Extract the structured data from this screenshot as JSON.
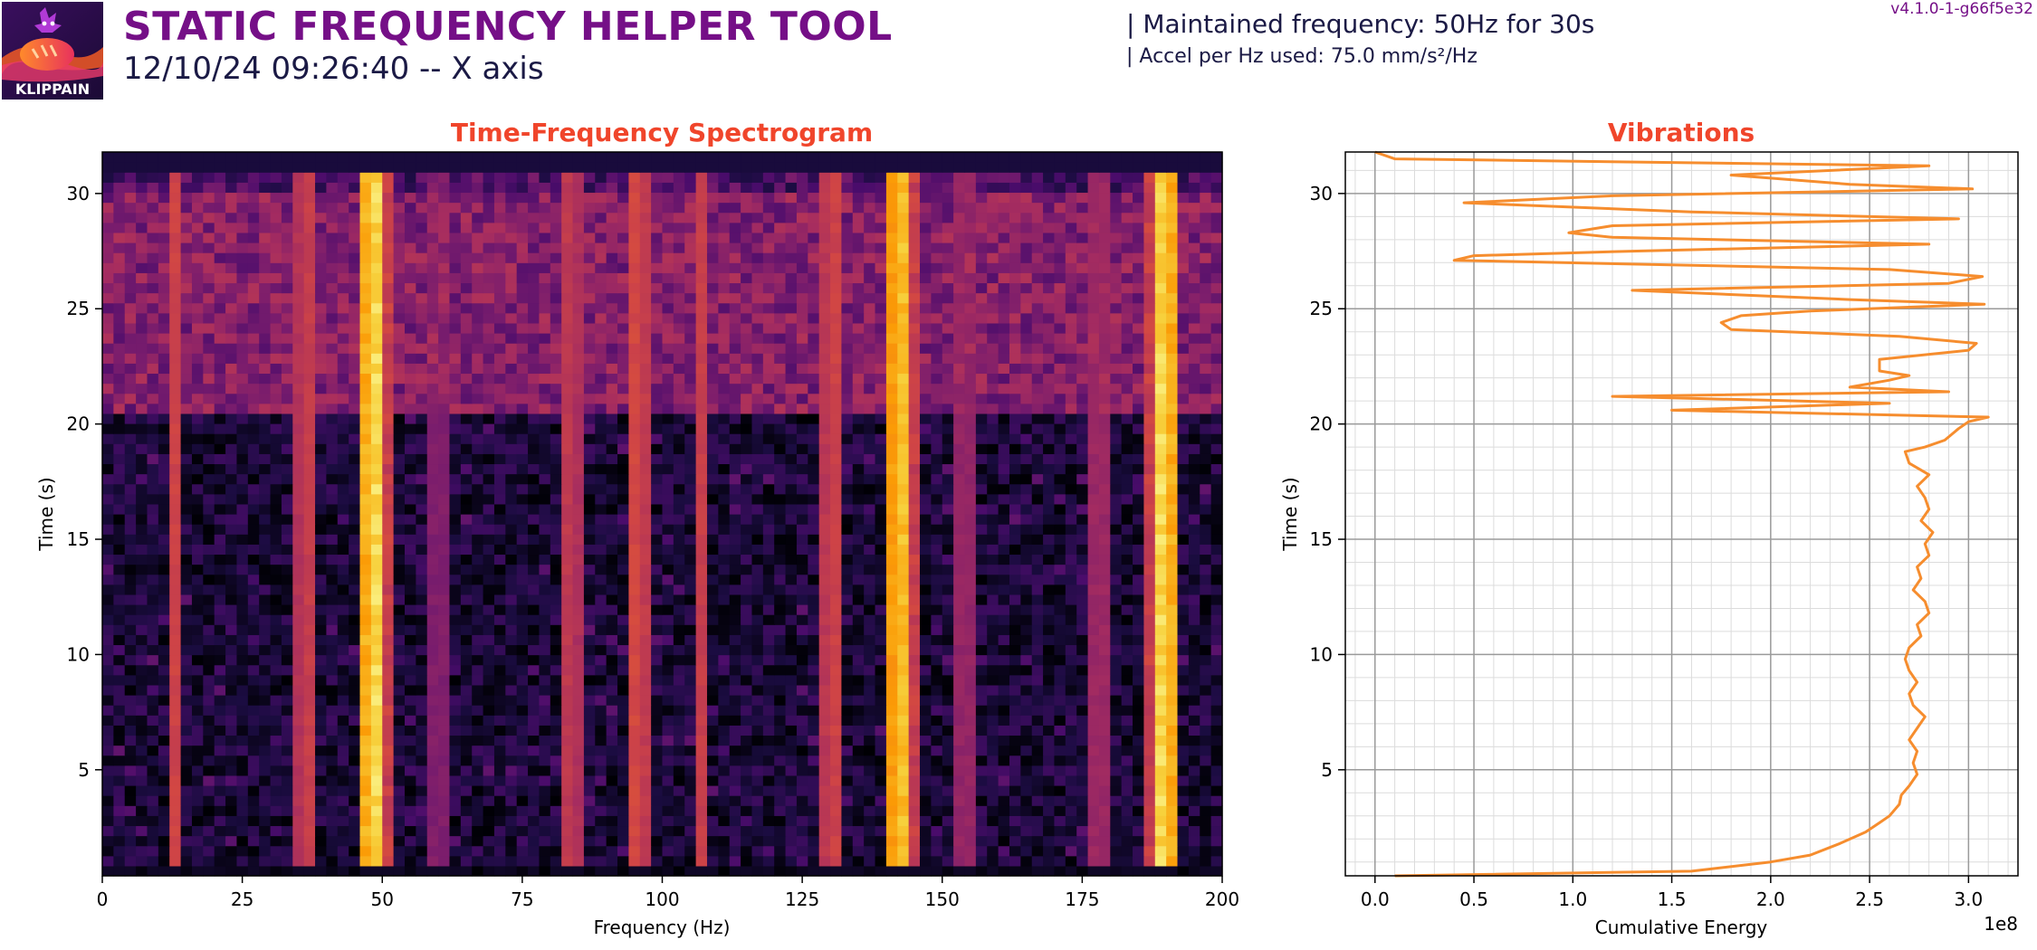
{
  "header": {
    "logo_text": "KLIPPAIN",
    "title": "STATIC FREQUENCY HELPER TOOL",
    "subtitle": "12/10/24 09:26:40 -- X axis",
    "info_line1": "| Maintained frequency: 50Hz for 30s",
    "info_line2": "| Accel per Hz used: 75.0 mm/s²/Hz",
    "version": "v4.1.0-1-g66f5e32"
  },
  "colors": {
    "title": "#750f87",
    "chart_title": "#f0452b",
    "line": "#f68d2e",
    "text": "#1b1a45"
  },
  "chart_data": [
    {
      "type": "heatmap",
      "title": "Time-Frequency Spectrogram",
      "xlabel": "Frequency (Hz)",
      "ylabel": "Time (s)",
      "xlim": [
        0,
        200
      ],
      "ylim": [
        0.4,
        31.8
      ],
      "xticks": [
        0,
        25,
        50,
        75,
        100,
        125,
        150,
        175,
        200
      ],
      "yticks": [
        5,
        10,
        15,
        20,
        25,
        30
      ],
      "colormap": "inferno",
      "bright_bands_hz": [
        {
          "freq": 13,
          "intensity": 0.62
        },
        {
          "freq": 36.5,
          "intensity": 0.62
        },
        {
          "freq": 48.5,
          "intensity": 0.98
        },
        {
          "freq": 60,
          "intensity": 0.45
        },
        {
          "freq": 83.5,
          "intensity": 0.6
        },
        {
          "freq": 95.5,
          "intensity": 0.66
        },
        {
          "freq": 107,
          "intensity": 0.6
        },
        {
          "freq": 130.5,
          "intensity": 0.64
        },
        {
          "freq": 142.5,
          "intensity": 0.95
        },
        {
          "freq": 154,
          "intensity": 0.5
        },
        {
          "freq": 178,
          "intensity": 0.52
        },
        {
          "freq": 189.5,
          "intensity": 0.98
        }
      ],
      "noisy_region_s": [
        20.5,
        31.8
      ]
    },
    {
      "type": "line",
      "title": "Vibrations",
      "xlabel": "Cumulative Energy",
      "ylabel": "Time (s)",
      "x_multiplier_label": "1e8",
      "xlim": [
        -0.15,
        3.25
      ],
      "ylim": [
        0.4,
        31.8
      ],
      "xticks": [
        0.0,
        0.5,
        1.0,
        1.5,
        2.0,
        2.5,
        3.0
      ],
      "xtick_labels": [
        "0.0",
        "0.5",
        "1.0",
        "1.5",
        "2.0",
        "2.5",
        "3.0"
      ],
      "yticks": [
        5,
        10,
        15,
        20,
        25,
        30
      ],
      "grid": true,
      "minor_grid": true,
      "series": [
        {
          "points": [
            [
              0.1,
              0.4
            ],
            [
              1.6,
              0.6
            ],
            [
              2.0,
              1.0
            ],
            [
              2.2,
              1.3
            ],
            [
              2.35,
              1.8
            ],
            [
              2.48,
              2.3
            ],
            [
              2.55,
              2.7
            ],
            [
              2.6,
              3.0
            ],
            [
              2.65,
              3.5
            ],
            [
              2.66,
              3.9
            ],
            [
              2.7,
              4.3
            ],
            [
              2.74,
              4.8
            ],
            [
              2.72,
              5.3
            ],
            [
              2.74,
              5.8
            ],
            [
              2.7,
              6.3
            ],
            [
              2.74,
              6.8
            ],
            [
              2.78,
              7.3
            ],
            [
              2.72,
              7.8
            ],
            [
              2.7,
              8.3
            ],
            [
              2.74,
              8.8
            ],
            [
              2.7,
              9.3
            ],
            [
              2.68,
              9.8
            ],
            [
              2.7,
              10.3
            ],
            [
              2.76,
              10.8
            ],
            [
              2.74,
              11.3
            ],
            [
              2.8,
              11.8
            ],
            [
              2.78,
              12.3
            ],
            [
              2.72,
              12.8
            ],
            [
              2.76,
              13.3
            ],
            [
              2.74,
              13.8
            ],
            [
              2.8,
              14.3
            ],
            [
              2.78,
              14.8
            ],
            [
              2.82,
              15.3
            ],
            [
              2.76,
              15.8
            ],
            [
              2.8,
              16.3
            ],
            [
              2.78,
              16.8
            ],
            [
              2.74,
              17.3
            ],
            [
              2.8,
              17.8
            ],
            [
              2.7,
              18.3
            ],
            [
              2.68,
              18.8
            ],
            [
              2.78,
              19.0
            ],
            [
              2.88,
              19.3
            ],
            [
              2.95,
              19.8
            ],
            [
              3.0,
              20.1
            ],
            [
              3.1,
              20.3
            ],
            [
              1.5,
              20.6
            ],
            [
              2.6,
              20.9
            ],
            [
              1.2,
              21.2
            ],
            [
              2.9,
              21.4
            ],
            [
              2.4,
              21.6
            ],
            [
              2.6,
              21.9
            ],
            [
              2.7,
              22.1
            ],
            [
              2.55,
              22.3
            ],
            [
              2.55,
              22.8
            ],
            [
              3.0,
              23.2
            ],
            [
              3.04,
              23.5
            ],
            [
              2.65,
              23.8
            ],
            [
              1.8,
              24.1
            ],
            [
              1.75,
              24.4
            ],
            [
              1.85,
              24.7
            ],
            [
              2.2,
              24.9
            ],
            [
              3.08,
              25.2
            ],
            [
              2.4,
              25.4
            ],
            [
              1.3,
              25.8
            ],
            [
              2.9,
              26.1
            ],
            [
              3.07,
              26.4
            ],
            [
              2.6,
              26.7
            ],
            [
              0.4,
              27.1
            ],
            [
              0.5,
              27.3
            ],
            [
              1.3,
              27.5
            ],
            [
              2.8,
              27.8
            ],
            [
              1.2,
              28.1
            ],
            [
              0.98,
              28.3
            ],
            [
              1.2,
              28.6
            ],
            [
              2.95,
              28.9
            ],
            [
              1.6,
              29.2
            ],
            [
              0.45,
              29.6
            ],
            [
              1.2,
              29.9
            ],
            [
              3.02,
              30.2
            ],
            [
              2.4,
              30.4
            ],
            [
              1.8,
              30.8
            ],
            [
              2.8,
              31.2
            ],
            [
              0.1,
              31.5
            ],
            [
              0.0,
              31.8
            ]
          ]
        }
      ]
    }
  ]
}
